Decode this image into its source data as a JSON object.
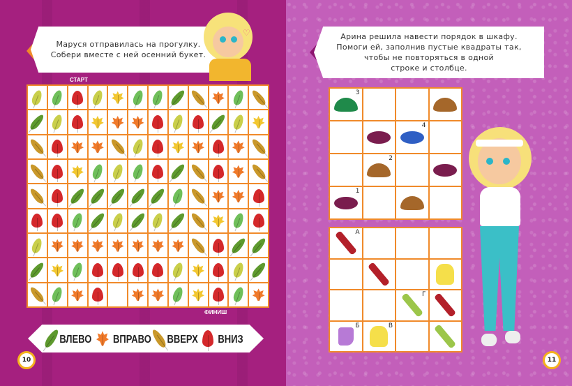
{
  "left_page": {
    "instruction": [
      "Маруся отправилась на прогулку.",
      "Собери вместе с ней осенний букет."
    ],
    "start_label": "СТАРТ",
    "finish_label": "ФИНИШ",
    "page_number": "10",
    "leaf_colors": {
      "G": "#6fbf5a",
      "O": "#5e9a2e",
      "L": "#c9cf4a",
      "Y": "#f2c730",
      "M": "#f07a2a",
      "R": "#d4282b",
      "B": "#c9982a",
      "_": ""
    },
    "leaf_grid": [
      "LGRLYGGOBMGB",
      "OLRYMMRLROLY",
      "BRMMBLRYMRMB",
      "BRYGLGROBRMB",
      "BROOOOOGBMMR",
      "RRGOLOLOBYGR",
      "LMMMMMMMBROO",
      "OYGRRRRLYRLO",
      "BGMR_MMGYRGM"
    ],
    "legend": [
      {
        "leaf": "O",
        "label": "ВЛЕВО"
      },
      {
        "leaf": "M",
        "label": "ВПРАВО"
      },
      {
        "leaf": "B",
        "label": "ВВЕРХ"
      },
      {
        "leaf": "R",
        "label": "ВНИЗ"
      }
    ]
  },
  "right_page": {
    "instruction": [
      "Арина решила навести порядок в шкафу.",
      "Помоги ей, заполнив пустые квадраты так,",
      "чтобы не повторяться в одной",
      "строке и столбце."
    ],
    "page_number": "11",
    "hats_grid": [
      [
        {
          "icon": "green-hat",
          "mark": "3"
        },
        {},
        {},
        {
          "icon": "brown-hat"
        }
      ],
      [
        {},
        {
          "icon": "burgundy-beret"
        },
        {
          "icon": "blue-cap",
          "mark": "4"
        },
        {}
      ],
      [
        {},
        {
          "icon": "brown-hat",
          "mark": "2"
        },
        {},
        {
          "icon": "burgundy-beret"
        }
      ],
      [
        {
          "icon": "burgundy-beret",
          "mark": "1"
        },
        {},
        {
          "icon": "brown-hat"
        },
        {}
      ]
    ],
    "clothes_grid": [
      [
        {
          "icon": "red-scarf",
          "mark": "А"
        },
        {},
        {},
        {}
      ],
      [
        {},
        {
          "icon": "red-scarf"
        },
        {},
        {
          "icon": "yellow-raincoat"
        }
      ],
      [
        {},
        {},
        {
          "icon": "green-scarf",
          "mark": "Г"
        },
        {
          "icon": "red-scarf"
        }
      ],
      [
        {
          "icon": "purple-boot",
          "mark": "Б"
        },
        {
          "icon": "yellow-raincoat",
          "mark": "В"
        },
        {},
        {
          "icon": "green-scarf"
        }
      ]
    ],
    "icon_colors": {
      "green-hat": "#1f8a4a",
      "brown-hat": "#a5672a",
      "burgundy-beret": "#7a1d4e",
      "blue-cap": "#2f5fc4",
      "red-scarf": "#b3202a",
      "yellow-raincoat": "#f5df4a",
      "green-scarf": "#9cc64a",
      "purple-boot": "#b77ad6"
    }
  }
}
